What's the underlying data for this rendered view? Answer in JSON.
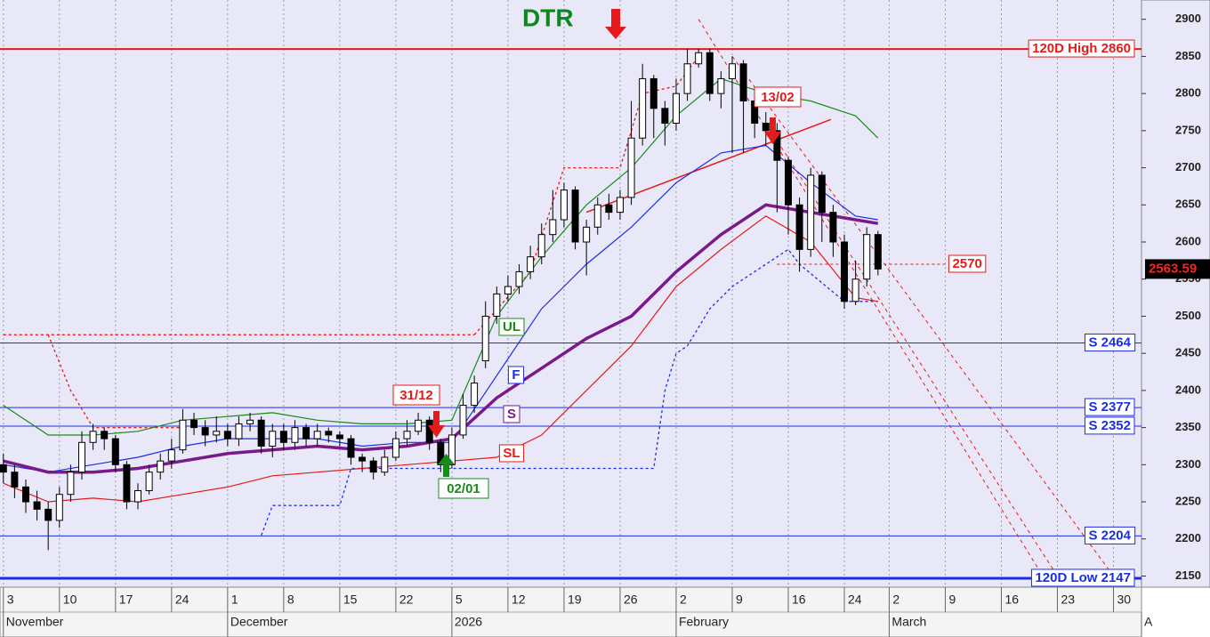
{
  "chart_data": {
    "type": "candlestick",
    "open": [
      2300,
      2290,
      2270,
      2250,
      2240,
      2225,
      2260,
      2290,
      2330,
      2345,
      2335,
      2300,
      2250,
      2265,
      2290,
      2305,
      2320,
      2360,
      2350,
      2340,
      2345,
      2335,
      2355,
      2360,
      2325,
      2345,
      2330,
      2350,
      2335,
      2345,
      2340,
      2335,
      2310,
      2305,
      2290,
      2310,
      2335,
      2345,
      2360,
      2330,
      2300,
      2340,
      2380,
      2440,
      2500,
      2530,
      2540,
      2560,
      2580,
      2610,
      2630,
      2670,
      2600,
      2620,
      2650,
      2640,
      2660,
      2740,
      2820,
      2780,
      2760,
      2800,
      2840,
      2855,
      2800,
      2820,
      2840,
      2790,
      2760,
      2750,
      2710,
      2650,
      2590,
      2690,
      2640,
      2600,
      2520,
      2550,
      2610
    ],
    "high": [
      2315,
      2300,
      2280,
      2265,
      2250,
      2270,
      2300,
      2345,
      2355,
      2350,
      2340,
      2305,
      2275,
      2300,
      2315,
      2335,
      2375,
      2370,
      2360,
      2365,
      2355,
      2365,
      2370,
      2365,
      2355,
      2355,
      2360,
      2355,
      2355,
      2350,
      2345,
      2340,
      2315,
      2310,
      2320,
      2345,
      2360,
      2370,
      2365,
      2335,
      2350,
      2395,
      2420,
      2520,
      2540,
      2555,
      2570,
      2595,
      2625,
      2670,
      2680,
      2675,
      2630,
      2660,
      2665,
      2670,
      2790,
      2840,
      2825,
      2790,
      2820,
      2860,
      2860,
      2860,
      2830,
      2850,
      2845,
      2800,
      2775,
      2760,
      2715,
      2660,
      2700,
      2695,
      2650,
      2610,
      2575,
      2620,
      2615
    ],
    "low": [
      2275,
      2255,
      2235,
      2225,
      2185,
      2215,
      2250,
      2280,
      2320,
      2320,
      2290,
      2240,
      2240,
      2260,
      2280,
      2295,
      2315,
      2340,
      2325,
      2330,
      2325,
      2325,
      2345,
      2315,
      2310,
      2320,
      2320,
      2325,
      2325,
      2330,
      2325,
      2300,
      2290,
      2280,
      2285,
      2305,
      2325,
      2340,
      2320,
      2290,
      2295,
      2335,
      2370,
      2430,
      2490,
      2520,
      2530,
      2550,
      2570,
      2600,
      2620,
      2590,
      2555,
      2610,
      2630,
      2630,
      2650,
      2730,
      2740,
      2730,
      2750,
      2790,
      2835,
      2790,
      2780,
      2720,
      2720,
      2740,
      2730,
      2640,
      2610,
      2560,
      2580,
      2600,
      2580,
      2510,
      2515,
      2540,
      2555
    ],
    "close": [
      2290,
      2270,
      2250,
      2240,
      2225,
      2260,
      2290,
      2330,
      2345,
      2335,
      2300,
      2250,
      2265,
      2290,
      2305,
      2320,
      2360,
      2350,
      2340,
      2345,
      2335,
      2355,
      2360,
      2325,
      2345,
      2330,
      2350,
      2335,
      2345,
      2340,
      2335,
      2310,
      2305,
      2290,
      2310,
      2335,
      2345,
      2360,
      2330,
      2300,
      2340,
      2380,
      2410,
      2500,
      2530,
      2540,
      2560,
      2580,
      2610,
      2630,
      2670,
      2600,
      2620,
      2650,
      2640,
      2660,
      2740,
      2820,
      2780,
      2760,
      2800,
      2840,
      2855,
      2800,
      2820,
      2840,
      2790,
      2760,
      2750,
      2710,
      2650,
      2590,
      2690,
      2640,
      2600,
      2520,
      2550,
      2610,
      2563.59
    ],
    "series": [
      {
        "name": "UL",
        "color": "#1a8a1a",
        "x": [
          0,
          4,
          8,
          12,
          16,
          20,
          24,
          28,
          32,
          36,
          40,
          44,
          48,
          52,
          56,
          60,
          64,
          68,
          72,
          76,
          78
        ],
        "values": [
          2380,
          2340,
          2340,
          2345,
          2360,
          2365,
          2370,
          2360,
          2355,
          2355,
          2360,
          2500,
          2580,
          2650,
          2700,
          2770,
          2820,
          2800,
          2790,
          2770,
          2740
        ]
      },
      {
        "name": "F",
        "color": "#1a2ee6",
        "x": [
          0,
          4,
          8,
          12,
          16,
          20,
          24,
          28,
          32,
          36,
          40,
          44,
          48,
          52,
          56,
          60,
          64,
          68,
          72,
          76,
          78
        ],
        "values": [
          2300,
          2290,
          2300,
          2310,
          2325,
          2335,
          2335,
          2335,
          2325,
          2330,
          2330,
          2420,
          2510,
          2570,
          2620,
          2680,
          2720,
          2730,
          2680,
          2635,
          2630
        ]
      },
      {
        "name": "S",
        "color": "#7a1a8a",
        "x": [
          0,
          4,
          8,
          12,
          16,
          20,
          24,
          28,
          32,
          36,
          40,
          44,
          48,
          52,
          56,
          60,
          64,
          68,
          72,
          76,
          78
        ],
        "values": [
          2305,
          2290,
          2290,
          2295,
          2305,
          2315,
          2320,
          2325,
          2320,
          2325,
          2335,
          2390,
          2430,
          2470,
          2500,
          2560,
          2610,
          2650,
          2640,
          2630,
          2625
        ]
      },
      {
        "name": "SL",
        "color": "#e61a1a",
        "x": [
          0,
          4,
          8,
          12,
          16,
          20,
          24,
          28,
          32,
          36,
          40,
          44,
          48,
          52,
          56,
          60,
          64,
          68,
          72,
          76,
          78
        ],
        "values": [
          2275,
          2250,
          2255,
          2250,
          2260,
          2270,
          2285,
          2290,
          2295,
          2300,
          2305,
          2310,
          2340,
          2400,
          2460,
          2540,
          2590,
          2635,
          2600,
          2525,
          2520
        ]
      }
    ],
    "stops": [
      {
        "color": "#1a2ee6",
        "x": [
          23,
          24,
          30,
          31,
          58,
          59,
          60,
          61,
          63,
          65,
          66,
          70,
          71,
          75,
          78
        ],
        "values": [
          2205,
          2245,
          2245,
          2295,
          2295,
          2400,
          2450,
          2460,
          2510,
          2540,
          2550,
          2590,
          2570,
          2520,
          2520
        ]
      },
      {
        "color": "#e61a1a",
        "x": [
          0,
          42
        ],
        "values": [
          2475,
          2475
        ]
      },
      {
        "color": "#e61a1a",
        "x": [
          4,
          6,
          8,
          16
        ],
        "values": [
          2475,
          2400,
          2350,
          2350
        ]
      },
      {
        "color": "#e61a1a",
        "x": [
          42,
          47,
          50,
          55,
          57,
          60,
          62
        ],
        "values": [
          2475,
          2560,
          2700,
          2700,
          2800,
          2810,
          2850
        ]
      }
    ],
    "trendlines": [
      {
        "color": "#e61a1a",
        "dash": true,
        "x": [
          62,
          92.7
        ],
        "values": [
          2900,
          2150
        ]
      },
      {
        "color": "#e61a1a",
        "dash": true,
        "x": [
          65,
          99
        ],
        "values": [
          2850,
          2150
        ]
      },
      {
        "color": "#e61a1a",
        "dash": true,
        "x": [
          68,
          94
        ],
        "values": [
          2760,
          2150
        ]
      },
      {
        "color": "#e61a1a",
        "dash": false,
        "x": [
          52,
          73.8
        ],
        "values": [
          2640,
          2765
        ]
      }
    ],
    "hlines": [
      {
        "label": "120D High 2860",
        "value": 2860,
        "color": "#e61a1a",
        "width": 2
      },
      {
        "label": "S 2464",
        "value": 2464,
        "color": "#1a2ee6",
        "width": 1
      },
      {
        "label": "S 2377",
        "value": 2377,
        "color": "#1a2ee6",
        "width": 1
      },
      {
        "label": "S 2352",
        "value": 2352,
        "color": "#1a2ee6",
        "width": 1
      },
      {
        "label": "S 2204",
        "value": 2204,
        "color": "#1a2ee6",
        "width": 1
      },
      {
        "label": "120D Low 2147",
        "value": 2147,
        "color": "#1a2ee6",
        "width": 3
      }
    ],
    "level": {
      "label": "2570",
      "value": 2570,
      "x": [
        69,
        84
      ],
      "color": "#e61a1a"
    },
    "annotations": [
      "DTR",
      "13/02",
      "31/12",
      "02/01"
    ],
    "xlim": [
      -0.3,
      101.5
    ],
    "xticks": [
      {
        "value": 0,
        "label": "3"
      },
      {
        "value": 5,
        "label": "10"
      },
      {
        "value": 10,
        "label": "17"
      },
      {
        "value": 15,
        "label": "24"
      },
      {
        "value": 20,
        "label": "1"
      },
      {
        "value": 25,
        "label": "8"
      },
      {
        "value": 30,
        "label": "15"
      },
      {
        "value": 35,
        "label": "22"
      },
      {
        "value": 40,
        "label": "5"
      },
      {
        "value": 45,
        "label": "12"
      },
      {
        "value": 50,
        "label": "19"
      },
      {
        "value": 55,
        "label": "26"
      },
      {
        "value": 60,
        "label": "2"
      },
      {
        "value": 65,
        "label": "9"
      },
      {
        "value": 70,
        "label": "16"
      },
      {
        "value": 75,
        "label": "24"
      },
      {
        "value": 79,
        "label": "2"
      },
      {
        "value": 84,
        "label": "9"
      },
      {
        "value": 89,
        "label": "16"
      },
      {
        "value": 94,
        "label": "23"
      },
      {
        "value": 99,
        "label": "30"
      }
    ],
    "months": [
      {
        "value": 0,
        "label": "November"
      },
      {
        "value": 20,
        "label": "December"
      },
      {
        "value": 40,
        "label": "2026"
      },
      {
        "value": 60,
        "label": "February"
      },
      {
        "value": 79,
        "label": "March"
      },
      {
        "value": 101.5,
        "label": "A"
      }
    ],
    "ylim": [
      2135,
      2926
    ],
    "yticks": [
      2150,
      2200,
      2250,
      2300,
      2350,
      2400,
      2450,
      2500,
      2550,
      2600,
      2650,
      2700,
      2750,
      2800,
      2850,
      2900
    ],
    "grid": true
  }
}
